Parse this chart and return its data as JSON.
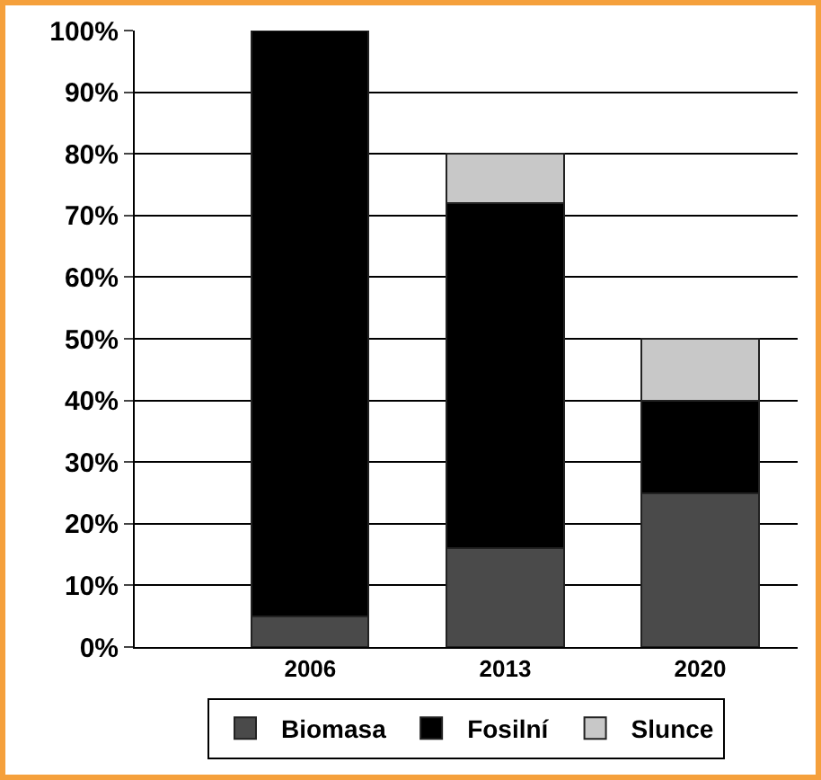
{
  "chart_data": {
    "type": "bar",
    "stacked": true,
    "categories": [
      "2006",
      "2013",
      "2020"
    ],
    "series": [
      {
        "name": "Biomasa",
        "color": "#4a4a4a",
        "values": [
          5,
          16,
          25
        ]
      },
      {
        "name": "Fosilní",
        "color": "#000000",
        "values": [
          95,
          56,
          15
        ]
      },
      {
        "name": "Slunce",
        "color": "#c8c8c8",
        "values": [
          null,
          8,
          10
        ]
      }
    ],
    "ylim": [
      0,
      100
    ],
    "yticks": [
      {
        "value": 0,
        "label": "0%"
      },
      {
        "value": 10,
        "label": "10%"
      },
      {
        "value": 20,
        "label": "20%"
      },
      {
        "value": 30,
        "label": "30%"
      },
      {
        "value": 40,
        "label": "40%"
      },
      {
        "value": 50,
        "label": "50%"
      },
      {
        "value": 60,
        "label": "60%"
      },
      {
        "value": 70,
        "label": "70%"
      },
      {
        "value": 80,
        "label": "80%"
      },
      {
        "value": 90,
        "label": "90%"
      },
      {
        "value": 100,
        "label": "100%"
      }
    ],
    "grid": "y",
    "legend": "bottom"
  }
}
